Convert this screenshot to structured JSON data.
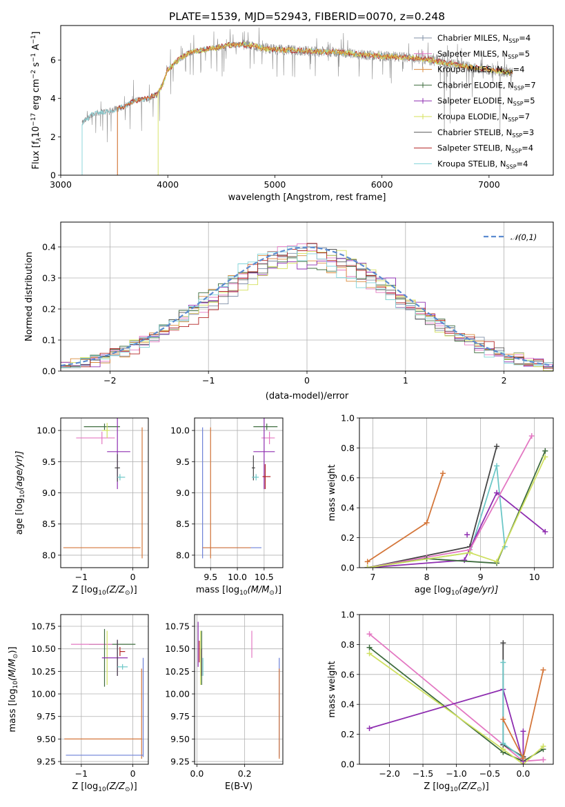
{
  "colors": {
    "Chabrier MILES": "#7f8fa6",
    "Salpeter MILES": "#e377c2",
    "Kroupa MILES": "#d98a3a",
    "Chabrier ELODIE": "#3d6b3d",
    "Salpeter ELODIE": "#8e2db0",
    "Kroupa ELODIE": "#d4e05a",
    "Chabrier STELIB": "#555555",
    "Salpeter STELIB": "#b22222",
    "Kroupa STELIB": "#7fd3d8",
    "wline": "#8c8c8c",
    "teal": "#6cc7c7",
    "orange": "#d4763a",
    "blue": "#6b7fd7",
    "gauss": "#5b8bd0",
    "pink": "#e377c2",
    "purple": "#8e2db0",
    "green": "#3d6b3d",
    "lime": "#cfe060",
    "dark": "#444444",
    "red": "#b22222"
  },
  "chart_data": [
    {
      "panel": "spectrum",
      "type": "line",
      "title": "PLATE=1539, MJD=52943, FIBERID=0070, z=0.248",
      "xlabel": "wavelength [Angstrom, rest frame]",
      "ylabel_main": "Flux [f",
      "ylabel_sub1": "λ",
      "ylabel_mid": "10",
      "ylabel_sup1": "−17",
      "ylabel_mid2": " erg cm",
      "ylabel_sup2": "−2",
      "ylabel_mid3": " s",
      "ylabel_sup3": "−1",
      "ylabel_mid4": " A",
      "ylabel_sup4": "−1",
      "ylabel_end": "]",
      "xlim": [
        3000,
        7600
      ],
      "ylim": [
        0,
        7.8
      ],
      "xticks": [
        3000,
        4000,
        5000,
        6000,
        7000
      ],
      "yticks": [
        0,
        2,
        4,
        6
      ],
      "legend_position": "upper right",
      "legend": [
        {
          "label": "Chabrier MILES, N",
          "sub": "SSP",
          "tail": "=4",
          "marker": "+"
        },
        {
          "label": "Salpeter MILES, N",
          "sub": "SSP",
          "tail": "=5",
          "marker": "+"
        },
        {
          "label": "Kroupa MILES, N",
          "sub": "SSP",
          "tail": "=4",
          "marker": "+"
        },
        {
          "label": "Chabrier ELODIE, N",
          "sub": "SSP",
          "tail": "=7",
          "marker": "+"
        },
        {
          "label": "Salpeter ELODIE, N",
          "sub": "SSP",
          "tail": "=5",
          "marker": "+"
        },
        {
          "label": "Kroupa ELODIE, N",
          "sub": "SSP",
          "tail": "=7",
          "marker": "+"
        },
        {
          "label": "Chabrier STELIB, N",
          "sub": "SSP",
          "tail": "=3",
          "marker": ""
        },
        {
          "label": "Salpeter STELIB, N",
          "sub": "SSP",
          "tail": "=4",
          "marker": ""
        },
        {
          "label": "Kroupa STELIB, N",
          "sub": "SSP",
          "tail": "=4",
          "marker": ""
        }
      ],
      "continuum": [
        [
          3200,
          2.7
        ],
        [
          3300,
          3.2
        ],
        [
          3400,
          3.3
        ],
        [
          3500,
          3.4
        ],
        [
          3600,
          3.6
        ],
        [
          3700,
          3.9
        ],
        [
          3800,
          4.0
        ],
        [
          3900,
          4.2
        ],
        [
          3950,
          4.7
        ],
        [
          4000,
          5.5
        ],
        [
          4100,
          6.0
        ],
        [
          4200,
          6.4
        ],
        [
          4300,
          6.5
        ],
        [
          4400,
          6.6
        ],
        [
          4500,
          6.7
        ],
        [
          4600,
          6.8
        ],
        [
          4700,
          6.8
        ],
        [
          4800,
          6.75
        ],
        [
          4900,
          6.6
        ],
        [
          5000,
          6.55
        ],
        [
          5200,
          6.5
        ],
        [
          5400,
          6.45
        ],
        [
          5600,
          6.4
        ],
        [
          5800,
          6.3
        ],
        [
          6000,
          6.2
        ],
        [
          6200,
          6.15
        ],
        [
          6400,
          6.05
        ],
        [
          6600,
          5.85
        ],
        [
          6800,
          5.65
        ],
        [
          7000,
          5.5
        ],
        [
          7200,
          5.35
        ]
      ],
      "model_starts": [
        3200,
        3530,
        3910
      ]
    },
    {
      "panel": "residuals",
      "type": "histogram",
      "xlabel": "(data-model)/error",
      "ylabel": "Normed distribution",
      "xlim": [
        -2.5,
        2.5
      ],
      "ylim": [
        0,
        0.48
      ],
      "xticks": [
        -2,
        -1,
        0,
        1,
        2
      ],
      "yticks": [
        0.0,
        0.1,
        0.2,
        0.3,
        0.4
      ],
      "legend": "𝒩(0,1)",
      "legend_position": "upper right",
      "bin_width": 0.1,
      "gaussian": {
        "mu": 0,
        "sigma": 1
      }
    },
    {
      "panel": "age_vs_Z",
      "type": "errorbar",
      "xlabel": "Z [log",
      "xlabel_sub": "10",
      "xlabel_tail": "(Z/Z",
      "xlabel_end": ")]",
      "ylabel": "age  [log",
      "ylabel_sub": "10",
      "ylabel_tail": "(age/yr)]",
      "xlim": [
        -1.4,
        0.3
      ],
      "ylim": [
        7.8,
        10.2
      ],
      "xticks": [
        -1,
        0
      ],
      "yticks": [
        8.0,
        8.5,
        9.0,
        9.5,
        10.0
      ],
      "points": [
        {
          "series": "green",
          "x": -0.55,
          "xerr": [
            0.4,
            0.3
          ],
          "y": 10.06,
          "yerr": 0.05
        },
        {
          "series": "pink",
          "x": -0.6,
          "xerr": [
            0.5,
            0.25
          ],
          "y": 9.88,
          "yerr": 0.1
        },
        {
          "series": "lime",
          "x": -0.5,
          "xerr": [
            0.1,
            0.05
          ],
          "y": 10.0,
          "yerr": 0.12
        },
        {
          "series": "purple",
          "x": -0.3,
          "xerr": [
            0.2,
            0.25
          ],
          "y": 9.66,
          "yerr": 0.6
        },
        {
          "series": "dark",
          "x": -0.3,
          "xerr": [
            0.05,
            0.05
          ],
          "y": 9.4,
          "yerr": 0.22
        },
        {
          "series": "teal",
          "x": -0.25,
          "xerr": [
            0.05,
            0.1
          ],
          "y": 9.25,
          "yerr": 0.05
        },
        {
          "series": "orange",
          "x": 0.15,
          "xerr": [
            1.5,
            0.0
          ],
          "y": 8.12,
          "yerr": 0.0
        },
        {
          "series": "orange",
          "x": 0.18,
          "xerr": [
            0.0,
            0.0
          ],
          "y": 9.0,
          "yerr": 1.05
        }
      ]
    },
    {
      "panel": "age_vs_mass",
      "type": "errorbar",
      "xlabel": "mass [log",
      "xlabel_sub": "10",
      "xlabel_tail": "(M/M",
      "xlabel_end": ")]",
      "xlim": [
        9.2,
        10.85
      ],
      "ylim": [
        7.8,
        10.2
      ],
      "xticks": [
        9.5,
        10.0,
        10.5
      ],
      "yticks": [
        8.0,
        8.5,
        9.0,
        9.5,
        10.0
      ],
      "points": [
        {
          "series": "green",
          "x": 10.55,
          "xerr": [
            0.25,
            0.2
          ],
          "y": 10.06,
          "yerr": 0.05
        },
        {
          "series": "pink",
          "x": 10.6,
          "xerr": [
            0.15,
            0.1
          ],
          "y": 9.88,
          "yerr": 0.1
        },
        {
          "series": "purple",
          "x": 10.5,
          "xerr": [
            0.2,
            0.2
          ],
          "y": 9.66,
          "yerr": 0.6
        },
        {
          "series": "red",
          "x": 10.52,
          "xerr": [
            0.05,
            0.1
          ],
          "y": 9.26,
          "yerr": 0.2
        },
        {
          "series": "dark",
          "x": 10.3,
          "xerr": [
            0.03,
            0.03
          ],
          "y": 9.4,
          "yerr": 0.2
        },
        {
          "series": "teal",
          "x": 10.35,
          "xerr": [
            0.08,
            0.05
          ],
          "y": 9.25,
          "yerr": 0.05
        },
        {
          "series": "blue",
          "x": 9.35,
          "xerr": [
            0.0,
            0.0
          ],
          "y": 9.0,
          "yerr": 1.05
        },
        {
          "series": "blue",
          "x": 9.9,
          "xerr": [
            0.55,
            0.55
          ],
          "y": 8.12,
          "yerr": 0.0
        },
        {
          "series": "orange",
          "x": 9.5,
          "xerr": [
            0.0,
            0.0
          ],
          "y": 9.0,
          "yerr": 1.05
        },
        {
          "series": "orange",
          "x": 9.8,
          "xerr": [
            0.45,
            0.45
          ],
          "y": 8.12,
          "yerr": 0.0
        }
      ]
    },
    {
      "panel": "weight_vs_age",
      "type": "line",
      "xlabel": "age  [log",
      "xlabel_sub": "10",
      "xlabel_tail": "(age/yr)]",
      "ylabel": "mass weight",
      "xlim": [
        6.75,
        10.35
      ],
      "ylim": [
        0,
        1.0
      ],
      "xticks": [
        7,
        8,
        9,
        10
      ],
      "yticks": [
        0.0,
        0.2,
        0.4,
        0.6,
        0.8,
        1.0
      ],
      "series": [
        {
          "name": "orange",
          "x": [
            6.9,
            8.0,
            8.3
          ],
          "y": [
            0.04,
            0.3,
            0.63
          ]
        },
        {
          "name": "dark",
          "x": [
            6.9,
            8.8,
            9.3
          ],
          "y": [
            0.0,
            0.14,
            0.81
          ]
        },
        {
          "name": "teal",
          "x": [
            6.9,
            8.8,
            9.3,
            9.45
          ],
          "y": [
            0.0,
            0.1,
            0.68,
            0.14
          ]
        },
        {
          "name": "purple",
          "x": [
            6.9,
            8.7,
            9.3,
            10.2
          ],
          "y": [
            0.0,
            0.05,
            0.5,
            0.24
          ]
        },
        {
          "name": "pink",
          "x": [
            6.9,
            8.0,
            8.8,
            9.95
          ],
          "y": [
            0.0,
            0.07,
            0.12,
            0.88
          ]
        },
        {
          "name": "green",
          "x": [
            6.9,
            8.0,
            9.3,
            10.2
          ],
          "y": [
            0.0,
            0.06,
            0.03,
            0.78
          ]
        },
        {
          "name": "lime",
          "x": [
            6.9,
            8.8,
            9.3,
            10.2
          ],
          "y": [
            0.0,
            0.1,
            0.04,
            0.74
          ]
        },
        {
          "name": "purple",
          "x": [
            8.75
          ],
          "y": [
            0.22
          ]
        }
      ]
    },
    {
      "panel": "mass_vs_Z",
      "type": "errorbar",
      "xlabel": "Z [log",
      "xlabel_sub": "10",
      "xlabel_tail": "(Z/Z",
      "xlabel_end": ")]",
      "ylabel": "mass [log",
      "ylabel_sub": "10",
      "ylabel_tail": "(M/M",
      "ylabel_end": ")]",
      "xlim": [
        -1.4,
        0.3
      ],
      "ylim": [
        9.22,
        10.88
      ],
      "xticks": [
        -1,
        0
      ],
      "yticks": [
        9.25,
        9.5,
        9.75,
        10.0,
        10.25,
        10.5,
        10.75
      ],
      "points": [
        {
          "series": "green",
          "x": -0.55,
          "xerr": [
            0.3,
            0.6
          ],
          "y": 10.55,
          "yerr": 0.0
        },
        {
          "series": "pink",
          "x": -0.7,
          "xerr": [
            0.5,
            0.3
          ],
          "y": 10.55,
          "yerr": 0.0
        },
        {
          "series": "lime",
          "x": -0.5,
          "xerr": [
            0.0,
            0.0
          ],
          "y": 10.4,
          "yerr": 0.3
        },
        {
          "series": "green",
          "x": -0.55,
          "xerr": [
            0.0,
            0.0
          ],
          "y": 10.4,
          "yerr": 0.32
        },
        {
          "series": "purple",
          "x": -0.3,
          "xerr": [
            0.3,
            0.2
          ],
          "y": 10.4,
          "yerr": 0.2
        },
        {
          "series": "red",
          "x": -0.25,
          "xerr": [
            0.0,
            0.1
          ],
          "y": 10.47,
          "yerr": 0.05
        },
        {
          "series": "dark",
          "x": -0.3,
          "xerr": [
            0.0,
            0.0
          ],
          "y": 10.4,
          "yerr": 0.2
        },
        {
          "series": "teal",
          "x": -0.2,
          "xerr": [
            0.1,
            0.1
          ],
          "y": 10.3,
          "yerr": 0.03
        },
        {
          "series": "orange",
          "x": 0.17,
          "xerr": [
            1.5,
            0.0
          ],
          "y": 9.5,
          "yerr": 0.0
        },
        {
          "series": "orange",
          "x": 0.17,
          "xerr": [
            0.0,
            0.0
          ],
          "y": 9.78,
          "yerr": 0.5
        },
        {
          "series": "blue",
          "x": 0.2,
          "xerr": [
            1.5,
            0.0
          ],
          "y": 9.32,
          "yerr": 0.0
        },
        {
          "series": "blue",
          "x": 0.2,
          "xerr": [
            0.0,
            0.0
          ],
          "y": 9.85,
          "yerr": 0.55
        }
      ]
    },
    {
      "panel": "mass_vs_ebv",
      "type": "errorbar",
      "xlabel": "E(B-V)",
      "xlim": [
        -0.01,
        0.36
      ],
      "ylim": [
        9.22,
        10.88
      ],
      "xticks": [
        0.0,
        0.2
      ],
      "yticks": [
        9.25,
        9.5,
        9.75,
        10.0,
        10.25,
        10.5,
        10.75
      ],
      "points": [
        {
          "series": "purple",
          "x": 0.005,
          "y": 10.55,
          "yerr": 0.25
        },
        {
          "series": "red",
          "x": 0.01,
          "y": 10.47,
          "yerr": 0.12
        },
        {
          "series": "lime",
          "x": 0.015,
          "y": 10.4,
          "yerr": 0.3
        },
        {
          "series": "green",
          "x": 0.02,
          "y": 10.4,
          "yerr": 0.3
        },
        {
          "series": "teal",
          "x": 0.025,
          "y": 10.3,
          "yerr": 0.1
        },
        {
          "series": "dark",
          "x": 0.02,
          "y": 10.35,
          "yerr": 0.15
        },
        {
          "series": "pink",
          "x": 0.23,
          "y": 10.55,
          "yerr": 0.15
        },
        {
          "series": "blue",
          "x": 0.345,
          "y": 9.85,
          "yerr": 0.55
        },
        {
          "series": "orange",
          "x": 0.345,
          "y": 9.78,
          "yerr": 0.5
        }
      ]
    },
    {
      "panel": "weight_vs_Z",
      "type": "line",
      "xlabel": "Z [log",
      "xlabel_sub": "10",
      "xlabel_tail": "(Z/Z",
      "xlabel_end": ")]",
      "ylabel": "mass weight",
      "xlim": [
        -2.45,
        0.45
      ],
      "ylim": [
        0,
        1.0
      ],
      "xticks": [
        -2.0,
        -1.5,
        -1.0,
        -0.5,
        0.0
      ],
      "yticks": [
        0.0,
        0.2,
        0.4,
        0.6,
        0.8,
        1.0
      ],
      "series": [
        {
          "name": "pink",
          "x": [
            -2.3,
            0.0,
            0.3
          ],
          "y": [
            0.87,
            0.02,
            0.03
          ]
        },
        {
          "name": "green",
          "x": [
            -2.3,
            -0.3,
            0.0,
            0.3
          ],
          "y": [
            0.78,
            0.08,
            0.02,
            0.1
          ]
        },
        {
          "name": "lime",
          "x": [
            -2.3,
            -0.3,
            0.0,
            0.3
          ],
          "y": [
            0.74,
            0.1,
            0.0,
            0.12
          ]
        },
        {
          "name": "purple",
          "x": [
            -2.3,
            -0.3,
            0.0,
            0.0
          ],
          "y": [
            0.24,
            0.5,
            0.02,
            0.22
          ]
        },
        {
          "name": "dark",
          "x": [
            -0.3,
            -0.3,
            0.0
          ],
          "y": [
            0.81,
            0.13,
            0.05
          ]
        },
        {
          "name": "teal",
          "x": [
            -0.3,
            -0.3,
            0.0
          ],
          "y": [
            0.68,
            0.14,
            0.04
          ]
        },
        {
          "name": "orange",
          "x": [
            -0.3,
            0.0,
            0.3
          ],
          "y": [
            0.3,
            0.04,
            0.63
          ]
        }
      ]
    }
  ]
}
